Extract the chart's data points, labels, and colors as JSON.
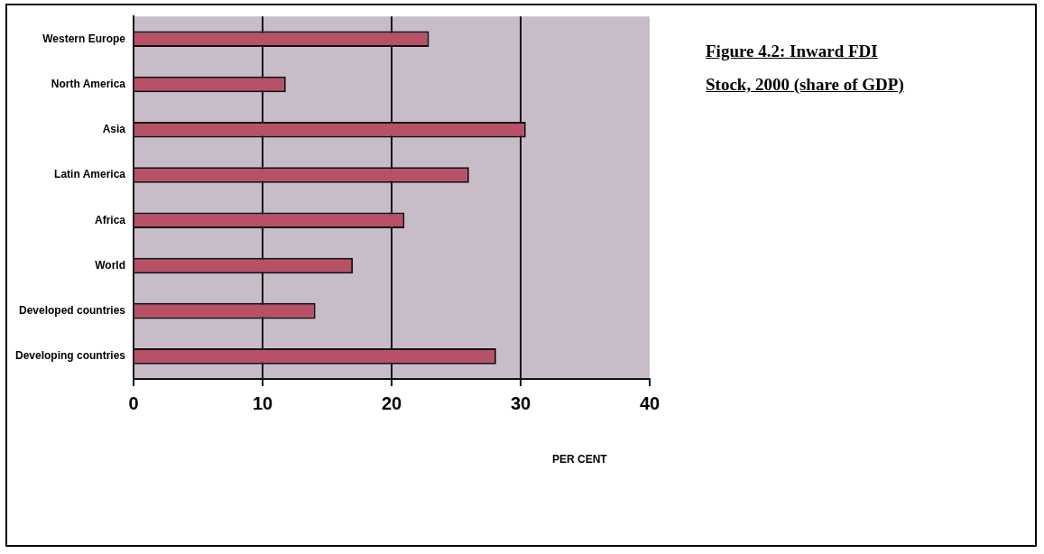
{
  "chart_data": {
    "type": "bar",
    "orientation": "horizontal",
    "title": "Figure 4.2: Inward FDI Stock, 2000 (share of GDP)",
    "xlabel": "PER CENT",
    "categories": [
      "Western Europe",
      "North America",
      "Asia",
      "Latin America",
      "Africa",
      "World",
      "Developed countries",
      "Developing countries"
    ],
    "values": [
      22.9,
      11.8,
      30.4,
      26.0,
      21.0,
      17.0,
      14.1,
      28.1
    ],
    "color": "#b85068",
    "xlim": [
      0,
      40
    ],
    "xticks": [
      0,
      10,
      20,
      30,
      40
    ],
    "grid": "x"
  }
}
